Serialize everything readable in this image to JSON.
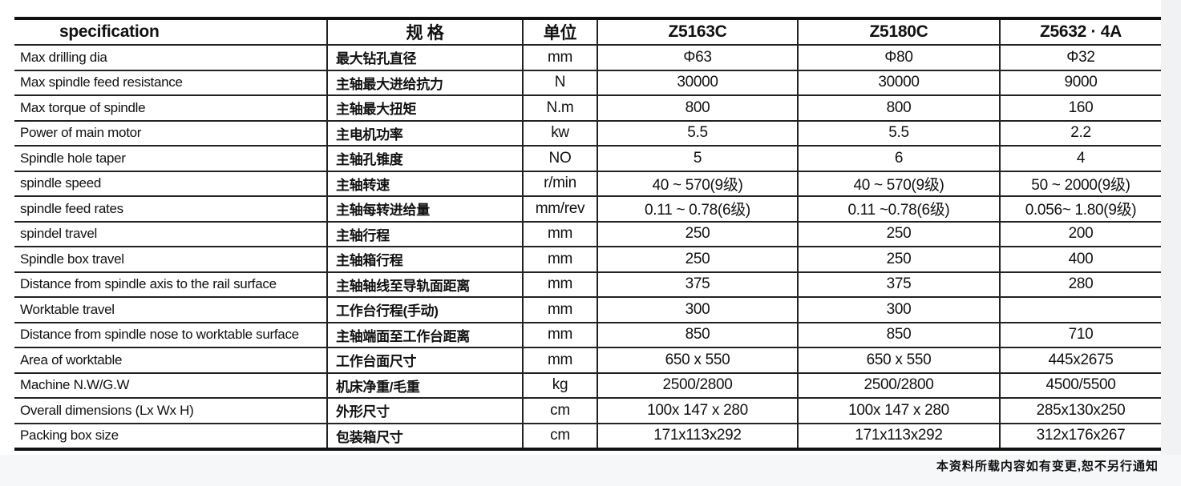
{
  "headers": [
    "specification",
    "规 格",
    "单位",
    "Z5163C",
    "Z5180C",
    "Z5632 · 4A"
  ],
  "rows": [
    [
      "Max drilling dia",
      "最大钻孔直径",
      "mm",
      "Φ63",
      "Φ80",
      "Φ32"
    ],
    [
      "Max spindle feed resistance",
      "主轴最大进给抗力",
      "N",
      "30000",
      "30000",
      "9000"
    ],
    [
      "Max torque of spindle",
      "主轴最大扭矩",
      "N.m",
      "800",
      "800",
      "160"
    ],
    [
      "Power of main motor",
      "主电机功率",
      "kw",
      "5.5",
      "5.5",
      "2.2"
    ],
    [
      "Spindle hole taper",
      "主轴孔锥度",
      "NO",
      "5",
      "6",
      "4"
    ],
    [
      "spindle speed",
      "主轴转速",
      "r/min",
      "40 ~ 570(9级)",
      "40 ~ 570(9级)",
      "50 ~ 2000(9级)"
    ],
    [
      "spindle feed rates",
      "主轴每转进给量",
      "mm/rev",
      "0.11 ~ 0.78(6级)",
      "0.11 ~0.78(6级)",
      "0.056~ 1.80(9级)"
    ],
    [
      "spindel travel",
      "主轴行程",
      "mm",
      "250",
      "250",
      "200"
    ],
    [
      "Spindle box travel",
      "主轴箱行程",
      "mm",
      "250",
      "250",
      "400"
    ],
    [
      "Distance from spindle axis to the rail surface",
      "主轴轴线至导轨面距离",
      "mm",
      "375",
      "375",
      "280"
    ],
    [
      "Worktable travel",
      "工作台行程(手动)",
      "mm",
      "300",
      "300",
      ""
    ],
    [
      "Distance from spindle nose to worktable surface",
      "主轴端面至工作台距离",
      "mm",
      "850",
      "850",
      "710"
    ],
    [
      "Area of worktable",
      "工作台面尺寸",
      "mm",
      "650 x 550",
      "650 x 550",
      "445x2675"
    ],
    [
      "Machine N.W/G.W",
      "机床净重/毛重",
      "kg",
      "2500/2800",
      "2500/2800",
      "4500/5500"
    ],
    [
      "Overall dimensions (Lx Wx H)",
      "外形尺寸",
      "cm",
      "100x 147 x 280",
      "100x 147 x 280",
      "285x130x250"
    ],
    [
      "Packing box size",
      "包装箱尺寸",
      "cm",
      "171x113x292",
      "171x113x292",
      "312x176x267"
    ]
  ],
  "footnote": "本资料所载内容如有变更,恕不另行通知"
}
